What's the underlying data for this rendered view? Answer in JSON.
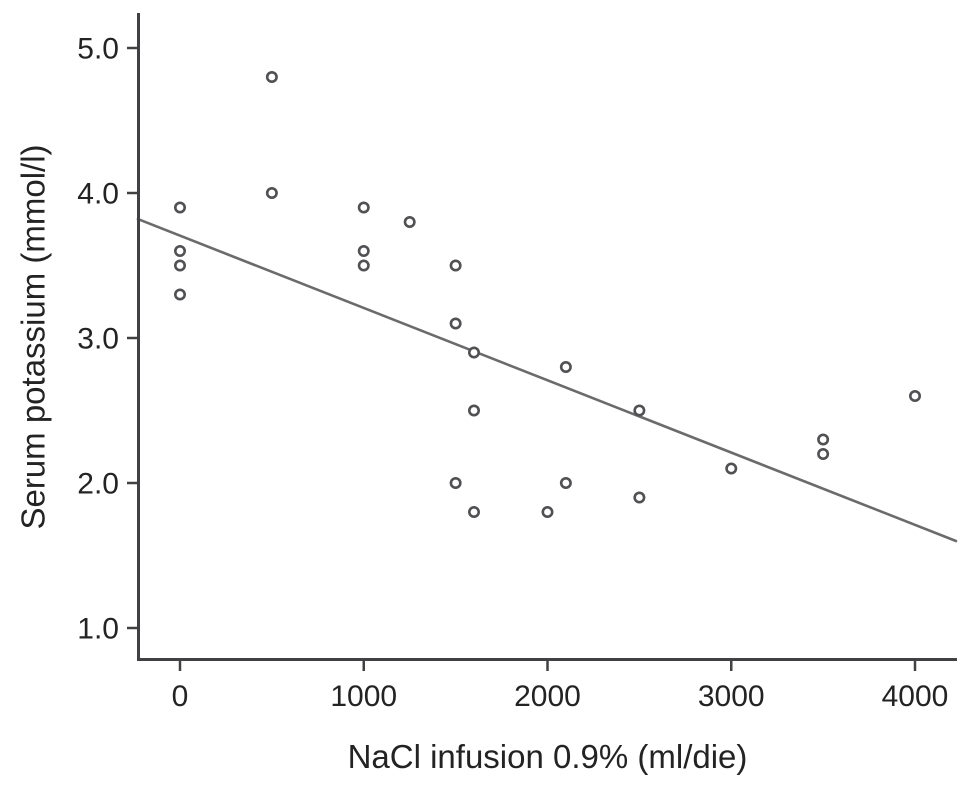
{
  "figure": {
    "background": "#ffffff"
  },
  "colors": {
    "axis": "#414144",
    "tick": "#414144",
    "text": "#232323",
    "marker_stroke": "#515154",
    "marker_fill": "#ffffff",
    "trend_line": "#6b6b6d"
  },
  "chart_data": {
    "type": "scatter",
    "title": "",
    "xlabel": "NaCl infusion 0.9% (ml/die)",
    "ylabel": "Serum potassium (mmol/l)",
    "xlim": [
      -230,
      4235
    ],
    "ylim": [
      0.78,
      5.24
    ],
    "grid": false,
    "legend": "none",
    "marker_style": "open-circle",
    "x_ticks": [
      {
        "value": 0,
        "label": "0"
      },
      {
        "value": 1000,
        "label": "1000"
      },
      {
        "value": 2000,
        "label": "2000"
      },
      {
        "value": 3000,
        "label": "3000"
      },
      {
        "value": 4000,
        "label": "4000"
      }
    ],
    "y_ticks": [
      {
        "value": 5.0,
        "label": "5.0"
      },
      {
        "value": 4.0,
        "label": "4.0"
      },
      {
        "value": 3.0,
        "label": "3.0"
      },
      {
        "value": 2.0,
        "label": "2.0"
      },
      {
        "value": 1.0,
        "label": "1.0"
      }
    ],
    "points": [
      {
        "x": 0,
        "y": 3.9
      },
      {
        "x": 0,
        "y": 3.6
      },
      {
        "x": 0,
        "y": 3.5
      },
      {
        "x": 0,
        "y": 3.3
      },
      {
        "x": 500,
        "y": 4.8
      },
      {
        "x": 500,
        "y": 4.0
      },
      {
        "x": 1000,
        "y": 3.9
      },
      {
        "x": 1000,
        "y": 3.6
      },
      {
        "x": 1000,
        "y": 3.5
      },
      {
        "x": 1250,
        "y": 3.8
      },
      {
        "x": 1500,
        "y": 3.5
      },
      {
        "x": 1500,
        "y": 3.1
      },
      {
        "x": 1500,
        "y": 2.0
      },
      {
        "x": 1600,
        "y": 2.9
      },
      {
        "x": 1600,
        "y": 2.5
      },
      {
        "x": 1600,
        "y": 1.8
      },
      {
        "x": 2000,
        "y": 1.8
      },
      {
        "x": 2100,
        "y": 2.8
      },
      {
        "x": 2100,
        "y": 2.0
      },
      {
        "x": 2500,
        "y": 2.5
      },
      {
        "x": 2500,
        "y": 1.9
      },
      {
        "x": 3000,
        "y": 2.1
      },
      {
        "x": 3500,
        "y": 2.3
      },
      {
        "x": 3500,
        "y": 2.2
      },
      {
        "x": 4000,
        "y": 2.6
      }
    ],
    "trend_line": {
      "x1": -229,
      "y1": 3.82,
      "x2": 4223,
      "y2": 1.6
    }
  }
}
